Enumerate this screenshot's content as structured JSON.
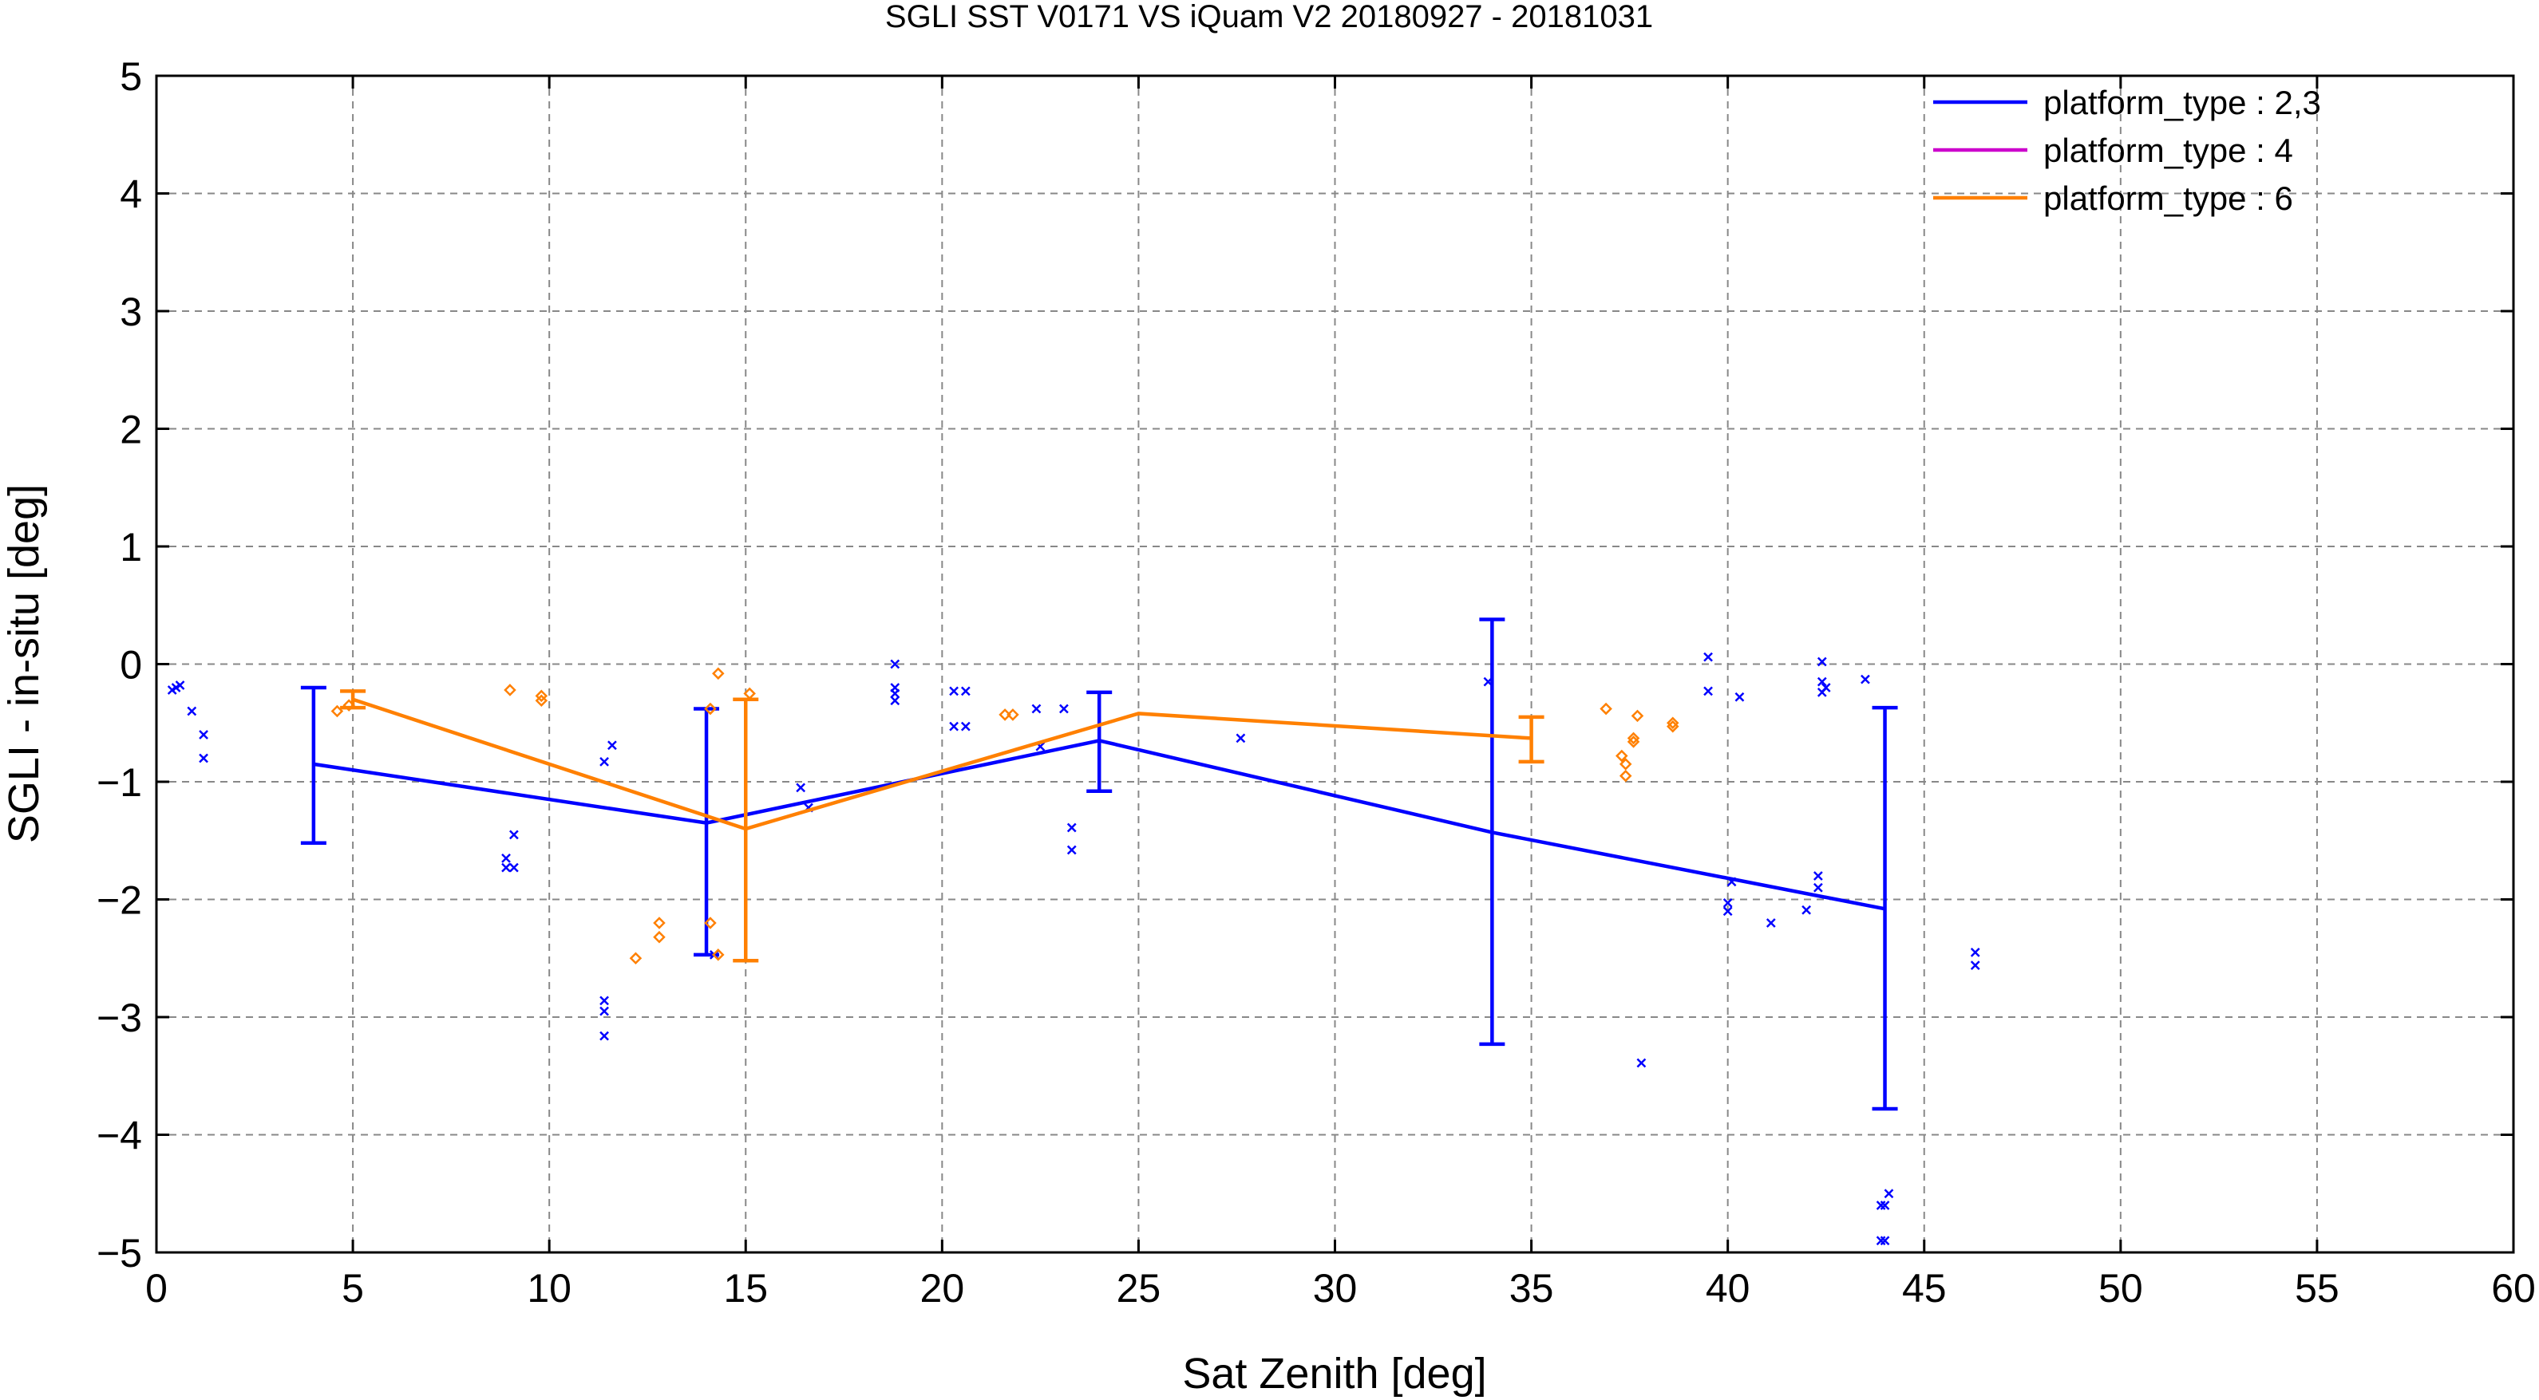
{
  "chart_data": {
    "type": "line",
    "title": "SGLI SST V0171 VS iQuam V2 20180927 - 20181031",
    "xlabel": "Sat Zenith [deg]",
    "ylabel": "SGLI - in-situ [deg]",
    "xlim": [
      0,
      60
    ],
    "ylim": [
      -5,
      5
    ],
    "xticks": [
      0,
      5,
      10,
      15,
      20,
      25,
      30,
      35,
      40,
      45,
      50,
      55,
      60
    ],
    "yticks": [
      -5,
      -4,
      -3,
      -2,
      -1,
      0,
      1,
      2,
      3,
      4,
      5
    ],
    "xtick_labels": [
      "0",
      "5",
      "10",
      "15",
      "20",
      "25",
      "30",
      "35",
      "40",
      "45",
      "50",
      "55",
      "60"
    ],
    "ytick_labels": [
      "−5",
      "−4",
      "−3",
      "−2",
      "−1",
      "0",
      "1",
      "2",
      "3",
      "4",
      "5"
    ],
    "grid": true,
    "legend_position": "top-right",
    "series": [
      {
        "name": "platform_type : 2,3",
        "color": "#0000ff",
        "marker": "x",
        "mean": [
          {
            "x": 4,
            "y": -0.85,
            "lo": -1.52,
            "hi": -0.2
          },
          {
            "x": 14,
            "y": -1.35,
            "lo": -2.47,
            "hi": -0.38
          },
          {
            "x": 24,
            "y": -0.65,
            "lo": -1.08,
            "hi": -0.24
          },
          {
            "x": 34,
            "y": -1.43,
            "lo": -3.23,
            "hi": 0.38
          },
          {
            "x": 44,
            "y": -2.08,
            "lo": -3.78,
            "hi": -0.37
          }
        ],
        "points": [
          {
            "x": 0.4,
            "y": -0.22
          },
          {
            "x": 0.5,
            "y": -0.2
          },
          {
            "x": 0.6,
            "y": -0.18
          },
          {
            "x": 0.9,
            "y": -0.4
          },
          {
            "x": 1.2,
            "y": -0.6
          },
          {
            "x": 1.2,
            "y": -0.8
          },
          {
            "x": 8.9,
            "y": -1.65
          },
          {
            "x": 8.9,
            "y": -1.73
          },
          {
            "x": 9.1,
            "y": -1.73
          },
          {
            "x": 9.1,
            "y": -1.45
          },
          {
            "x": 11.4,
            "y": -0.83
          },
          {
            "x": 11.6,
            "y": -0.69
          },
          {
            "x": 11.4,
            "y": -2.86
          },
          {
            "x": 11.4,
            "y": -2.95
          },
          {
            "x": 11.4,
            "y": -3.16
          },
          {
            "x": 14.2,
            "y": -2.47
          },
          {
            "x": 16.4,
            "y": -1.05
          },
          {
            "x": 16.6,
            "y": -1.22
          },
          {
            "x": 18.8,
            "y": 0.0
          },
          {
            "x": 18.8,
            "y": -0.2
          },
          {
            "x": 18.8,
            "y": -0.25
          },
          {
            "x": 18.8,
            "y": -0.31
          },
          {
            "x": 20.3,
            "y": -0.23
          },
          {
            "x": 20.6,
            "y": -0.23
          },
          {
            "x": 20.3,
            "y": -0.53
          },
          {
            "x": 20.6,
            "y": -0.53
          },
          {
            "x": 22.4,
            "y": -0.38
          },
          {
            "x": 23.1,
            "y": -0.38
          },
          {
            "x": 22.5,
            "y": -0.7
          },
          {
            "x": 23.3,
            "y": -1.39
          },
          {
            "x": 23.3,
            "y": -1.58
          },
          {
            "x": 27.6,
            "y": -0.63
          },
          {
            "x": 33.9,
            "y": -0.15
          },
          {
            "x": 37.8,
            "y": -3.39
          },
          {
            "x": 39.5,
            "y": 0.06
          },
          {
            "x": 39.5,
            "y": -0.23
          },
          {
            "x": 40.3,
            "y": -0.28
          },
          {
            "x": 40.0,
            "y": -2.03
          },
          {
            "x": 40.0,
            "y": -2.1
          },
          {
            "x": 40.1,
            "y": -1.85
          },
          {
            "x": 41.1,
            "y": -2.2
          },
          {
            "x": 42.0,
            "y": -2.09
          },
          {
            "x": 42.3,
            "y": -1.8
          },
          {
            "x": 42.3,
            "y": -1.9
          },
          {
            "x": 42.4,
            "y": 0.02
          },
          {
            "x": 42.4,
            "y": -0.15
          },
          {
            "x": 42.4,
            "y": -0.24
          },
          {
            "x": 42.5,
            "y": -0.2
          },
          {
            "x": 43.5,
            "y": -0.13
          },
          {
            "x": 43.9,
            "y": -4.6
          },
          {
            "x": 44.0,
            "y": -4.6
          },
          {
            "x": 44.1,
            "y": -4.5
          },
          {
            "x": 43.9,
            "y": -4.9
          },
          {
            "x": 44.0,
            "y": -4.9
          },
          {
            "x": 46.3,
            "y": -2.45
          },
          {
            "x": 46.3,
            "y": -2.56
          }
        ]
      },
      {
        "name": "platform_type : 4",
        "color": "#cc00cc",
        "marker": "none",
        "mean": [],
        "points": []
      },
      {
        "name": "platform_type : 6",
        "color": "#ff8000",
        "marker": "diamond",
        "mean": [
          {
            "x": 5,
            "y": -0.3,
            "lo": -0.37,
            "hi": -0.23
          },
          {
            "x": 15,
            "y": -1.4,
            "lo": -2.52,
            "hi": -0.3
          },
          {
            "x": 25,
            "y": -0.42,
            "lo": -0.42,
            "hi": -0.42
          },
          {
            "x": 35,
            "y": -0.63,
            "lo": -0.83,
            "hi": -0.45
          }
        ],
        "points": [
          {
            "x": 4.6,
            "y": -0.4
          },
          {
            "x": 4.9,
            "y": -0.35
          },
          {
            "x": 9.0,
            "y": -0.22
          },
          {
            "x": 9.8,
            "y": -0.27
          },
          {
            "x": 9.8,
            "y": -0.31
          },
          {
            "x": 12.2,
            "y": -2.5
          },
          {
            "x": 12.8,
            "y": -2.2
          },
          {
            "x": 12.8,
            "y": -2.32
          },
          {
            "x": 14.1,
            "y": -0.38
          },
          {
            "x": 14.1,
            "y": -2.2
          },
          {
            "x": 14.3,
            "y": -0.08
          },
          {
            "x": 14.3,
            "y": -2.47
          },
          {
            "x": 15.1,
            "y": -0.25
          },
          {
            "x": 21.6,
            "y": -0.43
          },
          {
            "x": 21.8,
            "y": -0.43
          },
          {
            "x": 36.9,
            "y": -0.38
          },
          {
            "x": 37.3,
            "y": -0.78
          },
          {
            "x": 37.4,
            "y": -0.85
          },
          {
            "x": 37.4,
            "y": -0.95
          },
          {
            "x": 37.6,
            "y": -0.63
          },
          {
            "x": 37.6,
            "y": -0.66
          },
          {
            "x": 37.7,
            "y": -0.44
          },
          {
            "x": 38.6,
            "y": -0.5
          },
          {
            "x": 38.6,
            "y": -0.53
          }
        ]
      }
    ]
  }
}
